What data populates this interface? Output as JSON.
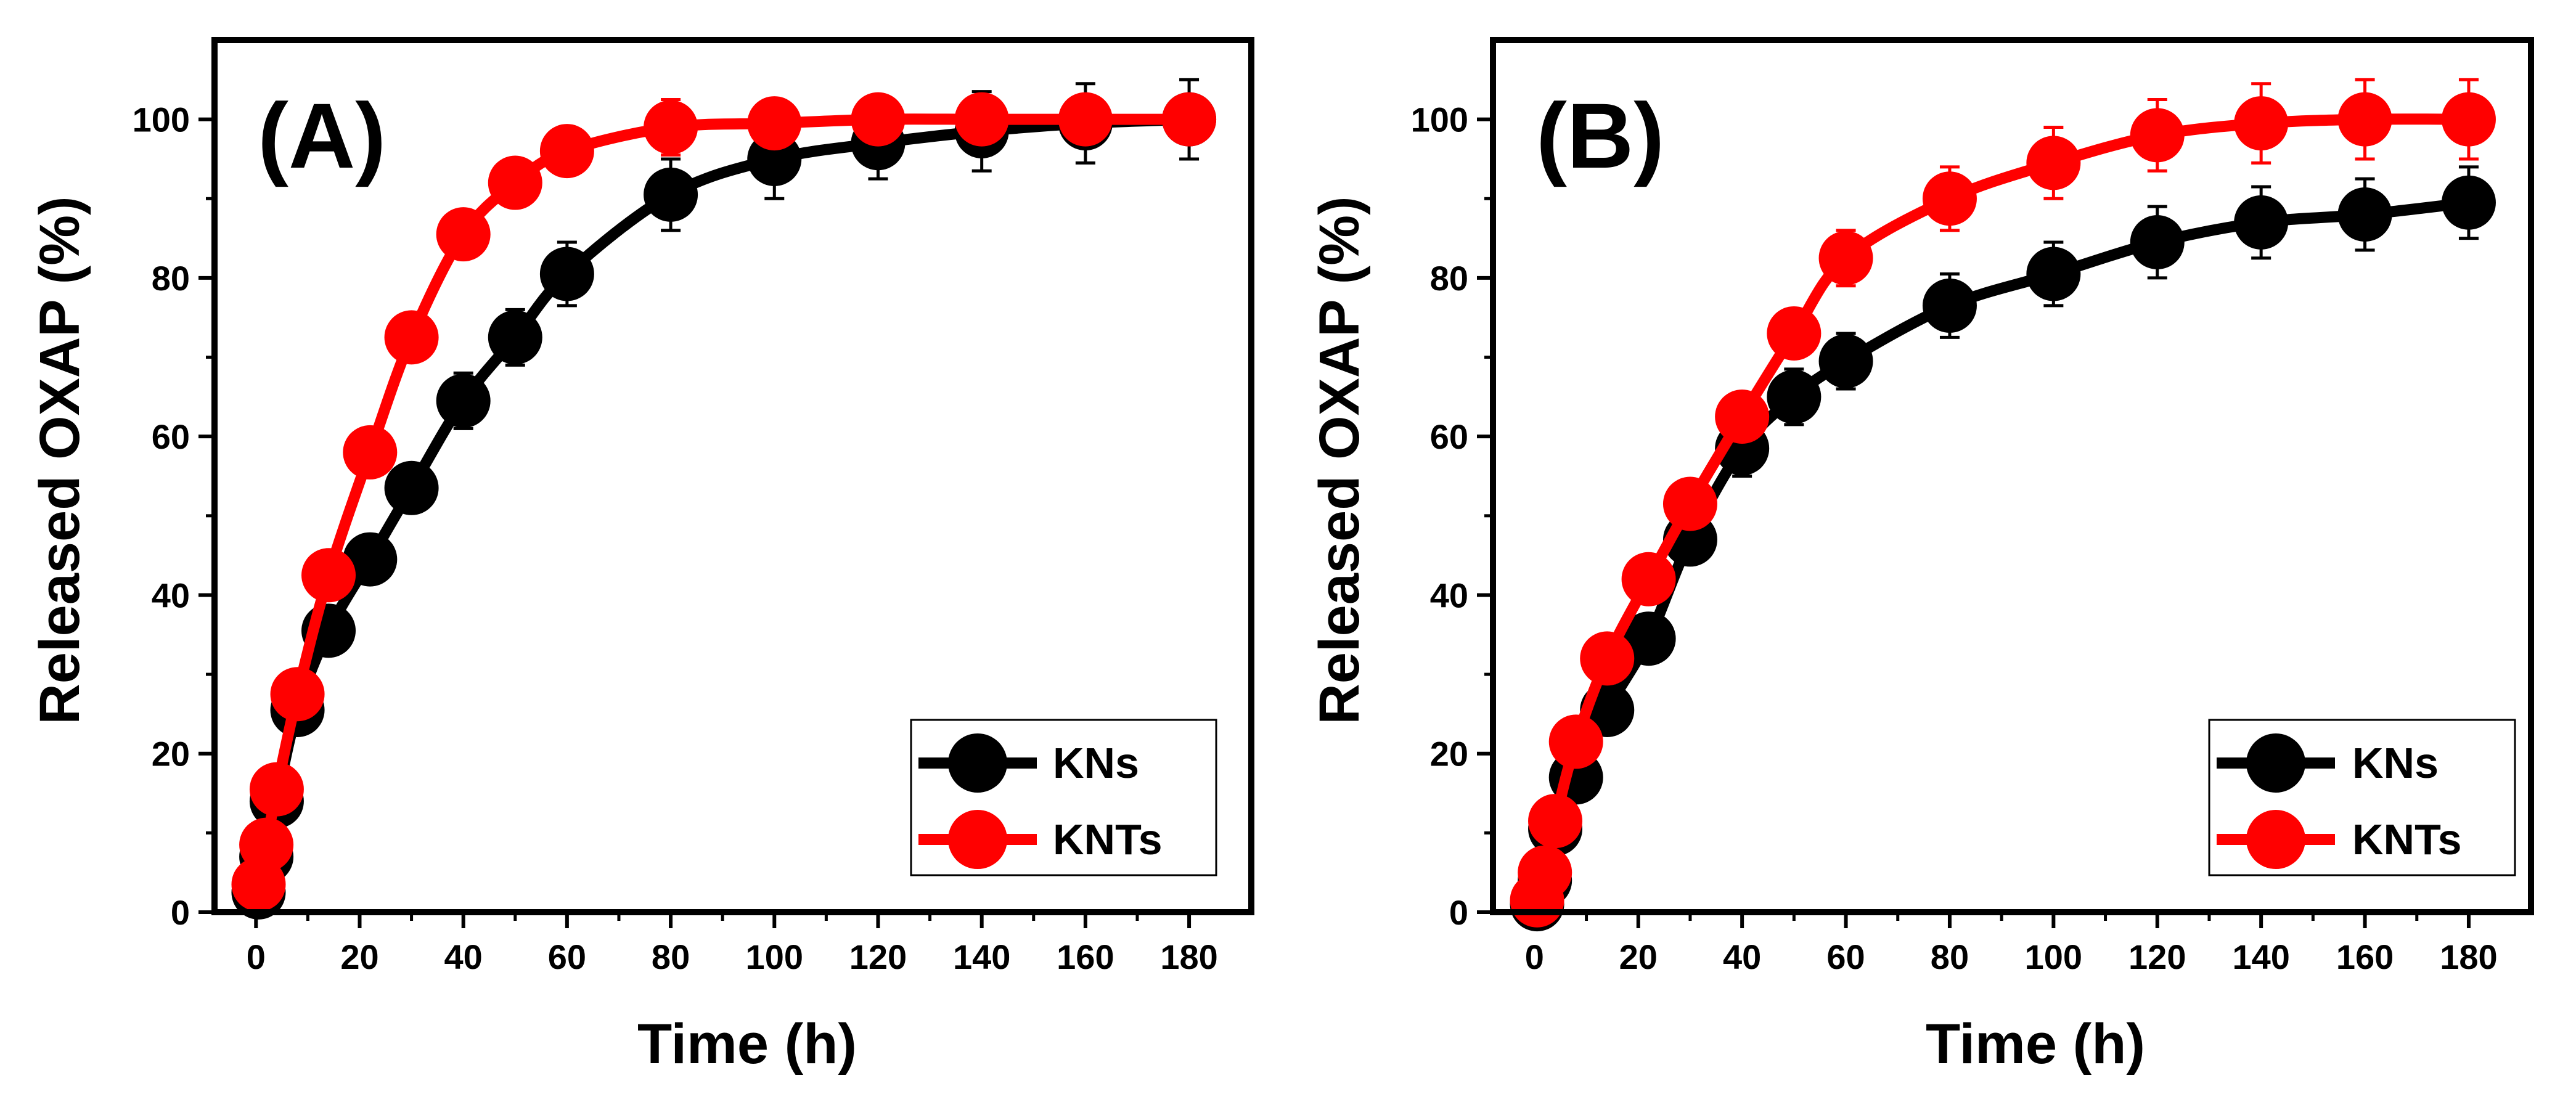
{
  "figure": {
    "description_panels": [
      "A",
      "B"
    ]
  },
  "colors": {
    "KNs": "#000000",
    "KNTs": "#ff0000",
    "axes": "#000000",
    "background": "#ffffff"
  },
  "chart_data": [
    {
      "type": "line",
      "panel_label": "(A)",
      "xlabel": "Time (h)",
      "ylabel": "Released OXAP (%)",
      "xlim": [
        -8,
        192
      ],
      "ylim": [
        0,
        110
      ],
      "xticks": [
        0,
        20,
        40,
        60,
        80,
        100,
        120,
        140,
        160,
        180
      ],
      "yticks": [
        0,
        20,
        40,
        60,
        80,
        100
      ],
      "legend_position": "bottom-right",
      "series": [
        {
          "name": "KNs",
          "color": "#000000",
          "x": [
            0.5,
            2,
            4,
            8,
            14,
            22,
            30,
            40,
            50,
            60,
            80,
            100,
            120,
            140,
            160,
            180
          ],
          "y": [
            2.5,
            7,
            14,
            25.5,
            35.5,
            44.5,
            53.5,
            64.5,
            72.5,
            80.5,
            90.5,
            95,
            97,
            98.5,
            99.5,
            100
          ],
          "error": [
            1,
            1.5,
            2,
            2.5,
            2.5,
            3,
            3,
            3.5,
            3.5,
            4,
            4.5,
            5,
            4.5,
            5,
            5,
            5
          ]
        },
        {
          "name": "KNTs",
          "color": "#ff0000",
          "x": [
            0.5,
            2,
            4,
            8,
            14,
            22,
            30,
            40,
            50,
            60,
            80,
            100,
            120,
            140,
            160,
            180
          ],
          "y": [
            3.5,
            8.5,
            15.5,
            27.5,
            42.5,
            58,
            72.5,
            85.5,
            92,
            96,
            99,
            99.5,
            100,
            100,
            100,
            100
          ],
          "error": [
            1,
            1.5,
            2,
            2,
            2.5,
            2.5,
            2.5,
            2.5,
            3,
            3,
            3.5,
            3,
            2.5,
            2.5,
            2.5,
            2.5
          ]
        }
      ]
    },
    {
      "type": "line",
      "panel_label": "(B)",
      "xlabel": "Time (h)",
      "ylabel": "Released OXAP (%)",
      "xlim": [
        -8,
        192
      ],
      "ylim": [
        0,
        110
      ],
      "xticks": [
        0,
        20,
        40,
        60,
        80,
        100,
        120,
        140,
        160,
        180
      ],
      "yticks": [
        0,
        20,
        40,
        60,
        80,
        100
      ],
      "legend_position": "bottom-right",
      "series": [
        {
          "name": "KNs",
          "color": "#000000",
          "x": [
            0.5,
            2,
            4,
            8,
            14,
            22,
            30,
            40,
            50,
            60,
            80,
            100,
            120,
            140,
            160,
            180
          ],
          "y": [
            1,
            4,
            10.5,
            17,
            25.5,
            34.5,
            47,
            58.5,
            65,
            69.5,
            76.5,
            80.5,
            84.5,
            87,
            88,
            89.5
          ],
          "error": [
            1.5,
            2,
            2.5,
            3,
            3,
            3,
            3,
            3.5,
            3.5,
            3.5,
            4,
            4,
            4.5,
            4.5,
            4.5,
            4.5
          ]
        },
        {
          "name": "KNTs",
          "color": "#ff0000",
          "x": [
            0.5,
            2,
            4,
            8,
            14,
            22,
            30,
            40,
            50,
            60,
            80,
            100,
            120,
            140,
            160,
            180
          ],
          "y": [
            1.5,
            5,
            11.5,
            21.5,
            32,
            42,
            51.5,
            62.5,
            73,
            82.5,
            90,
            94.5,
            98,
            99.5,
            100,
            100
          ],
          "error": [
            1.5,
            2,
            2.5,
            2.5,
            3,
            3,
            3,
            3,
            3,
            3.5,
            4,
            4.5,
            4.5,
            5,
            5,
            5
          ]
        }
      ]
    }
  ]
}
